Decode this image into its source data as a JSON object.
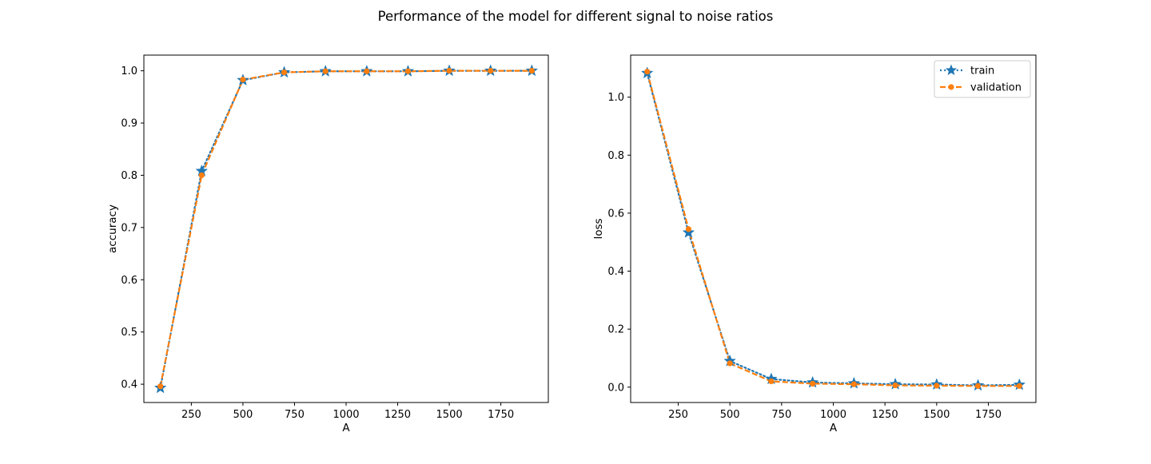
{
  "figure": {
    "suptitle": "Performance of the model for different signal to noise ratios"
  },
  "chart_data": [
    {
      "type": "line",
      "title": "",
      "xlabel": "A",
      "ylabel": "accuracy",
      "xlim": [
        20,
        1980
      ],
      "ylim": [
        0.365,
        1.03
      ],
      "x_ticks": [
        250,
        500,
        750,
        1000,
        1250,
        1500,
        1750
      ],
      "y_ticks": [
        0.4,
        0.5,
        0.6,
        0.7,
        0.8,
        0.9,
        1.0
      ],
      "grid": false,
      "legend": null,
      "x": [
        100,
        300,
        500,
        700,
        900,
        1100,
        1300,
        1500,
        1700,
        1900
      ],
      "series": [
        {
          "name": "train",
          "color": "#1f77b4",
          "marker": "star",
          "linestyle": "dotted",
          "values": [
            0.393,
            0.808,
            0.982,
            0.997,
            0.999,
            0.999,
            0.999,
            1.0,
            1.0,
            1.0
          ]
        },
        {
          "name": "validation",
          "color": "#ff7f0e",
          "marker": "circle",
          "linestyle": "dashed",
          "values": [
            0.396,
            0.8,
            0.983,
            0.997,
            0.999,
            0.999,
            0.999,
            1.0,
            1.0,
            1.0
          ]
        }
      ]
    },
    {
      "type": "line",
      "title": "",
      "xlabel": "A",
      "ylabel": "loss",
      "xlim": [
        20,
        1980
      ],
      "ylim": [
        -0.053,
        1.145
      ],
      "x_ticks": [
        250,
        500,
        750,
        1000,
        1250,
        1500,
        1750
      ],
      "y_ticks": [
        0.0,
        0.2,
        0.4,
        0.6,
        0.8,
        1.0
      ],
      "grid": false,
      "legend": "top-right",
      "x": [
        100,
        300,
        500,
        700,
        900,
        1100,
        1300,
        1500,
        1700,
        1900
      ],
      "series": [
        {
          "name": "train",
          "color": "#1f77b4",
          "marker": "star",
          "linestyle": "dotted",
          "values": [
            1.083,
            0.533,
            0.09,
            0.028,
            0.016,
            0.013,
            0.01,
            0.009,
            0.006,
            0.008
          ]
        },
        {
          "name": "validation",
          "color": "#ff7f0e",
          "marker": "circle",
          "linestyle": "dashed",
          "values": [
            1.088,
            0.545,
            0.082,
            0.02,
            0.012,
            0.01,
            0.006,
            0.005,
            0.004,
            0.004
          ]
        }
      ]
    }
  ]
}
